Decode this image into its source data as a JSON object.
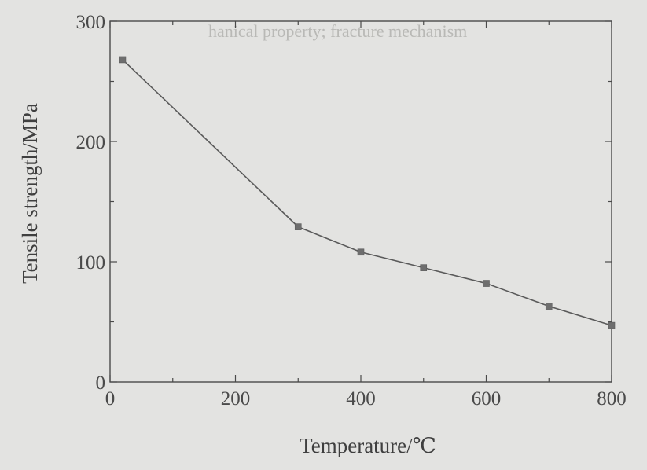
{
  "chart_data": {
    "type": "line",
    "title": "",
    "xlabel": "Temperature/℃",
    "ylabel": "Tensile strength/MPa",
    "xlim": [
      0,
      800
    ],
    "ylim": [
      0,
      300
    ],
    "xticks": [
      0,
      200,
      400,
      600,
      800
    ],
    "yticks": [
      0,
      100,
      200,
      300
    ],
    "grid": false,
    "marker": "square",
    "series": [
      {
        "x": [
          20,
          300,
          400,
          500,
          600,
          700,
          800
        ],
        "y": [
          268,
          129,
          108,
          95,
          82,
          63,
          47
        ]
      }
    ],
    "colors": {
      "line": "#5a5a5a",
      "marker": "#6e6e6e",
      "axis": "#4a4a4a",
      "background": "#e3e3e1"
    }
  },
  "background_text": "hanical property; fracture mechanism"
}
